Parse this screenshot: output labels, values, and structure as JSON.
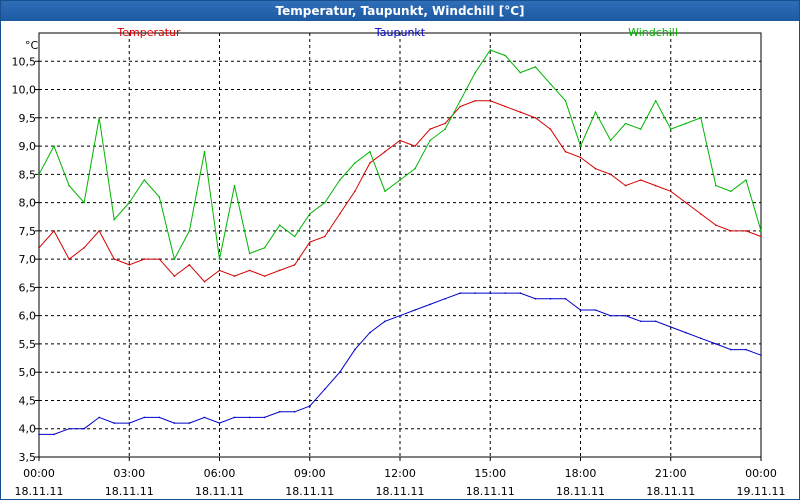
{
  "window": {
    "title": "Temperatur, Taupunkt, Windchill [°C]"
  },
  "colors": {
    "temperature": "#d40000",
    "dewpoint": "#0000c8",
    "windchill": "#00b400",
    "title_bg": "#1c5aa3"
  },
  "chart_data": {
    "type": "line",
    "title": "Temperatur, Taupunkt, Windchill [°C]",
    "ylabel": "°C",
    "xlabel": "",
    "ylim": [
      3.5,
      11.0
    ],
    "xlim": [
      0,
      24
    ],
    "grid": true,
    "y_ticks": [
      "3,5",
      "4,0",
      "4,5",
      "5,0",
      "5,5",
      "6,0",
      "6,5",
      "7,0",
      "7,5",
      "8,0",
      "8,5",
      "9,0",
      "9,5",
      "10,0",
      "10,5"
    ],
    "x_ticks": [
      {
        "time": "00:00",
        "date": "18.11.11"
      },
      {
        "time": "03:00",
        "date": "18.11.11"
      },
      {
        "time": "06:00",
        "date": "18.11.11"
      },
      {
        "time": "09:00",
        "date": "18.11.11"
      },
      {
        "time": "12:00",
        "date": "18.11.11"
      },
      {
        "time": "15:00",
        "date": "18.11.11"
      },
      {
        "time": "18:00",
        "date": "18.11.11"
      },
      {
        "time": "21:00",
        "date": "18.11.11"
      },
      {
        "time": "00:00",
        "date": "19.11.11"
      }
    ],
    "series": [
      {
        "name": "Temperatur",
        "key": "temperature",
        "x": [
          0,
          0.5,
          1,
          1.5,
          2,
          2.5,
          3,
          3.5,
          4,
          4.5,
          5,
          5.5,
          6,
          6.5,
          7,
          7.5,
          8,
          8.5,
          9,
          9.5,
          10,
          10.5,
          11,
          11.5,
          12,
          12.5,
          13,
          13.5,
          14,
          14.5,
          15,
          15.5,
          16,
          16.5,
          17,
          17.5,
          18,
          18.5,
          19,
          19.5,
          20,
          20.5,
          21,
          21.5,
          22,
          22.5,
          23,
          23.5,
          24
        ],
        "values": [
          7.2,
          7.5,
          7.0,
          7.2,
          7.5,
          7.0,
          6.9,
          7.0,
          7.0,
          6.7,
          6.9,
          6.6,
          6.8,
          6.7,
          6.8,
          6.7,
          6.8,
          6.9,
          7.3,
          7.4,
          7.8,
          8.2,
          8.7,
          8.9,
          9.1,
          9.0,
          9.3,
          9.4,
          9.7,
          9.8,
          9.8,
          9.7,
          9.6,
          9.5,
          9.3,
          8.9,
          8.8,
          8.6,
          8.5,
          8.3,
          8.4,
          8.3,
          8.2,
          8.0,
          7.8,
          7.6,
          7.5,
          7.5,
          7.4
        ]
      },
      {
        "name": "Taupunkt",
        "key": "dewpoint",
        "x": [
          0,
          0.5,
          1,
          1.5,
          2,
          2.5,
          3,
          3.5,
          4,
          4.5,
          5,
          5.5,
          6,
          6.5,
          7,
          7.5,
          8,
          8.5,
          9,
          9.5,
          10,
          10.5,
          11,
          11.5,
          12,
          12.5,
          13,
          13.5,
          14,
          14.5,
          15,
          15.5,
          16,
          16.5,
          17,
          17.5,
          18,
          18.5,
          19,
          19.5,
          20,
          20.5,
          21,
          21.5,
          22,
          22.5,
          23,
          23.5,
          24
        ],
        "values": [
          3.9,
          3.9,
          4.0,
          4.0,
          4.2,
          4.1,
          4.1,
          4.2,
          4.2,
          4.1,
          4.1,
          4.2,
          4.1,
          4.2,
          4.2,
          4.2,
          4.3,
          4.3,
          4.4,
          4.7,
          5.0,
          5.4,
          5.7,
          5.9,
          6.0,
          6.1,
          6.2,
          6.3,
          6.4,
          6.4,
          6.4,
          6.4,
          6.4,
          6.3,
          6.3,
          6.3,
          6.1,
          6.1,
          6.0,
          6.0,
          5.9,
          5.9,
          5.8,
          5.7,
          5.6,
          5.5,
          5.4,
          5.4,
          5.3
        ]
      },
      {
        "name": "Windchill",
        "key": "windchill",
        "x": [
          0,
          0.5,
          1,
          1.5,
          2,
          2.5,
          3,
          3.5,
          4,
          4.5,
          5,
          5.5,
          6,
          6.5,
          7,
          7.5,
          8,
          8.5,
          9,
          9.5,
          10,
          10.5,
          11,
          11.5,
          12,
          12.5,
          13,
          13.5,
          14,
          14.5,
          15,
          15.5,
          16,
          16.5,
          17,
          17.5,
          18,
          18.5,
          19,
          19.5,
          20,
          20.5,
          21,
          21.5,
          22,
          22.5,
          23,
          23.5,
          24
        ],
        "values": [
          8.5,
          9.0,
          8.3,
          8.0,
          9.5,
          7.7,
          8.0,
          8.4,
          8.1,
          7.0,
          7.5,
          8.9,
          7.0,
          8.3,
          7.1,
          7.2,
          7.6,
          7.4,
          7.8,
          8.0,
          8.4,
          8.7,
          8.9,
          8.2,
          8.4,
          8.6,
          9.1,
          9.3,
          9.8,
          10.3,
          10.7,
          10.6,
          10.3,
          10.4,
          10.1,
          9.8,
          9.0,
          9.6,
          9.1,
          9.4,
          9.3,
          9.8,
          9.3,
          9.4,
          9.5,
          8.3,
          8.2,
          8.4,
          7.5
        ]
      }
    ]
  }
}
